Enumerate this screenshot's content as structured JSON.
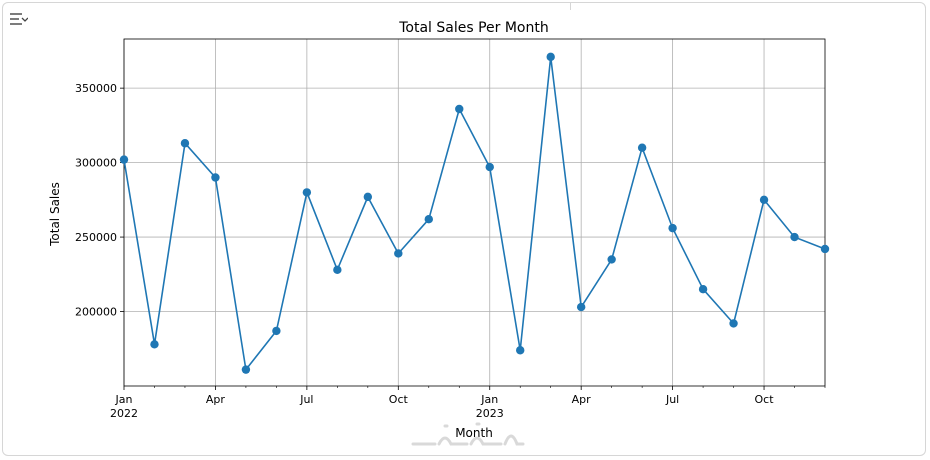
{
  "ui": {
    "output_toggle_icon": "output-toggle-icon",
    "watermark": "خمسات"
  },
  "chart_data": {
    "type": "line",
    "title": "Total Sales Per Month",
    "xlabel": "Month",
    "ylabel": "Total Sales",
    "x": [
      "2022-01",
      "2022-02",
      "2022-03",
      "2022-04",
      "2022-05",
      "2022-06",
      "2022-07",
      "2022-08",
      "2022-09",
      "2022-10",
      "2022-11",
      "2022-12",
      "2023-01",
      "2023-02",
      "2023-03",
      "2023-04",
      "2023-05",
      "2023-06",
      "2023-07",
      "2023-08",
      "2023-09",
      "2023-10",
      "2023-11",
      "2023-12"
    ],
    "series": [
      {
        "values": [
          302000,
          178000,
          313000,
          290000,
          161000,
          187000,
          280000,
          228000,
          277000,
          239000,
          262000,
          336000,
          297000,
          174000,
          371000,
          203000,
          235000,
          310000,
          256000,
          215000,
          192000,
          275000,
          250000,
          242000
        ],
        "color": "#1f77b4",
        "marker": "circle"
      }
    ],
    "ylim": [
      150000,
      383000
    ],
    "yticks": [
      200000,
      250000,
      300000,
      350000
    ],
    "ytick_labels": [
      "200000",
      "250000",
      "300000",
      "350000"
    ],
    "xticks": [
      {
        "label": "Jan",
        "sublabel": "2022",
        "index": 0
      },
      {
        "label": "Apr",
        "sublabel": "",
        "index": 3
      },
      {
        "label": "Jul",
        "sublabel": "",
        "index": 6
      },
      {
        "label": "Oct",
        "sublabel": "",
        "index": 9
      },
      {
        "label": "Jan",
        "sublabel": "2023",
        "index": 12
      },
      {
        "label": "Apr",
        "sublabel": "",
        "index": 15
      },
      {
        "label": "Jul",
        "sublabel": "",
        "index": 18
      },
      {
        "label": "Oct",
        "sublabel": "",
        "index": 21
      }
    ],
    "grid": true
  }
}
